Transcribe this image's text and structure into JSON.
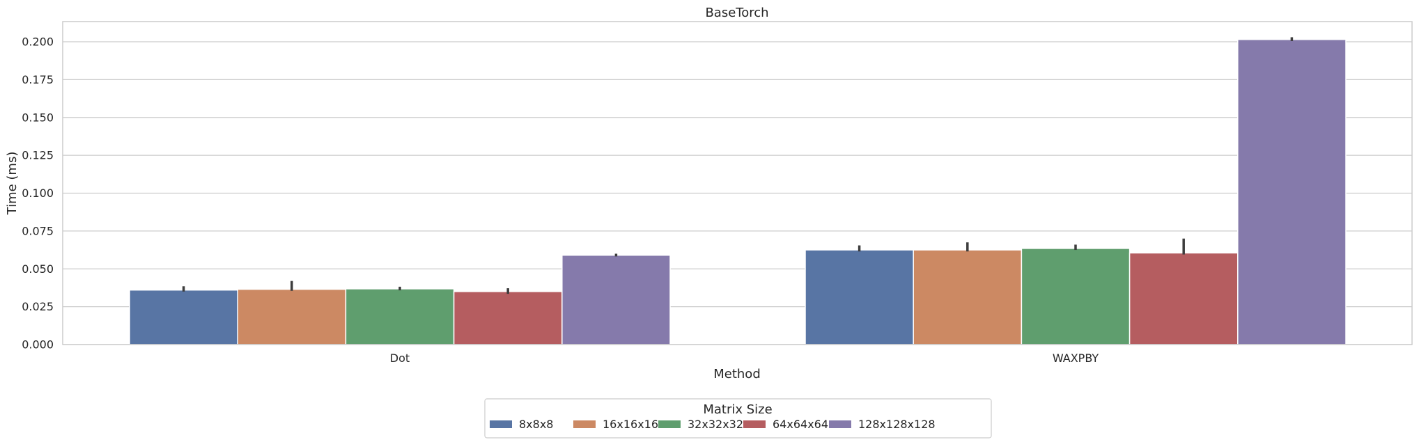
{
  "chart_data": {
    "type": "bar",
    "title": "BaseTorch",
    "xlabel": "Method",
    "ylabel": "Time (ms)",
    "categories": [
      "Dot",
      "WAXPBY"
    ],
    "ylim": [
      0,
      0.213
    ],
    "yticks": [
      0.0,
      0.025,
      0.05,
      0.075,
      0.1,
      0.125,
      0.15,
      0.175,
      0.2
    ],
    "ytick_labels": [
      "0.000",
      "0.025",
      "0.050",
      "0.075",
      "0.100",
      "0.125",
      "0.150",
      "0.175",
      "0.200"
    ],
    "grid": "horizontal",
    "legend": {
      "title": "Matrix Size",
      "placement": "bottom-center"
    },
    "series": [
      {
        "name": "8x8x8",
        "color": "#5875a4",
        "values": [
          0.036,
          0.0625
        ],
        "err_low": [
          0.035,
          0.0615
        ],
        "err_high": [
          0.0385,
          0.0655
        ]
      },
      {
        "name": "16x16x16",
        "color": "#cc8963",
        "values": [
          0.0365,
          0.0625
        ],
        "err_low": [
          0.0355,
          0.0615
        ],
        "err_high": [
          0.042,
          0.0675
        ]
      },
      {
        "name": "32x32x32",
        "color": "#5f9e6e",
        "values": [
          0.0368,
          0.0635
        ],
        "err_low": [
          0.0358,
          0.0625
        ],
        "err_high": [
          0.0382,
          0.066
        ]
      },
      {
        "name": "64x64x64",
        "color": "#b55d60",
        "values": [
          0.035,
          0.0605
        ],
        "err_low": [
          0.0335,
          0.0595
        ],
        "err_high": [
          0.0372,
          0.07
        ]
      },
      {
        "name": "128x128x128",
        "color": "#857aab",
        "values": [
          0.059,
          0.2015
        ],
        "err_low": [
          0.0582,
          0.2005
        ],
        "err_high": [
          0.06,
          0.203
        ]
      }
    ]
  }
}
